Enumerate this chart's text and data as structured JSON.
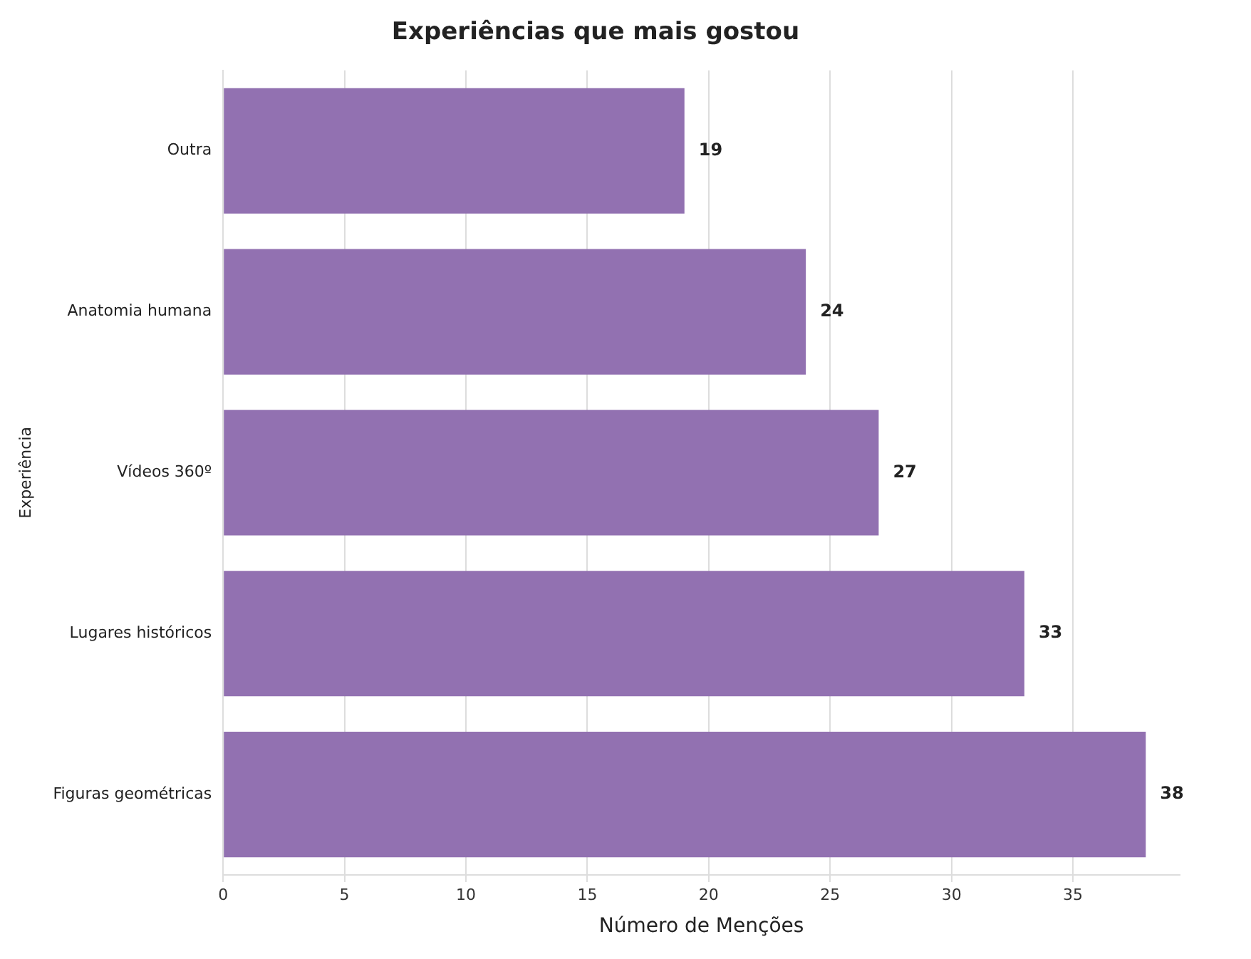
{
  "chart_data": {
    "type": "bar",
    "orientation": "horizontal",
    "title": "Experiências que mais gostou",
    "xlabel": "Número de Menções",
    "ylabel": "Experiência",
    "categories": [
      "Outra",
      "Anatomia humana",
      "Vídeos 360º",
      "Lugares históricos",
      "Figuras geométricas"
    ],
    "values": [
      19,
      24,
      27,
      33,
      38
    ],
    "color": "#9271b1",
    "xlim": [
      0,
      39.4
    ],
    "xticks": [
      0,
      5,
      10,
      15,
      20,
      25,
      30,
      35
    ],
    "grid": "x",
    "data_labels": true,
    "legend": false
  }
}
